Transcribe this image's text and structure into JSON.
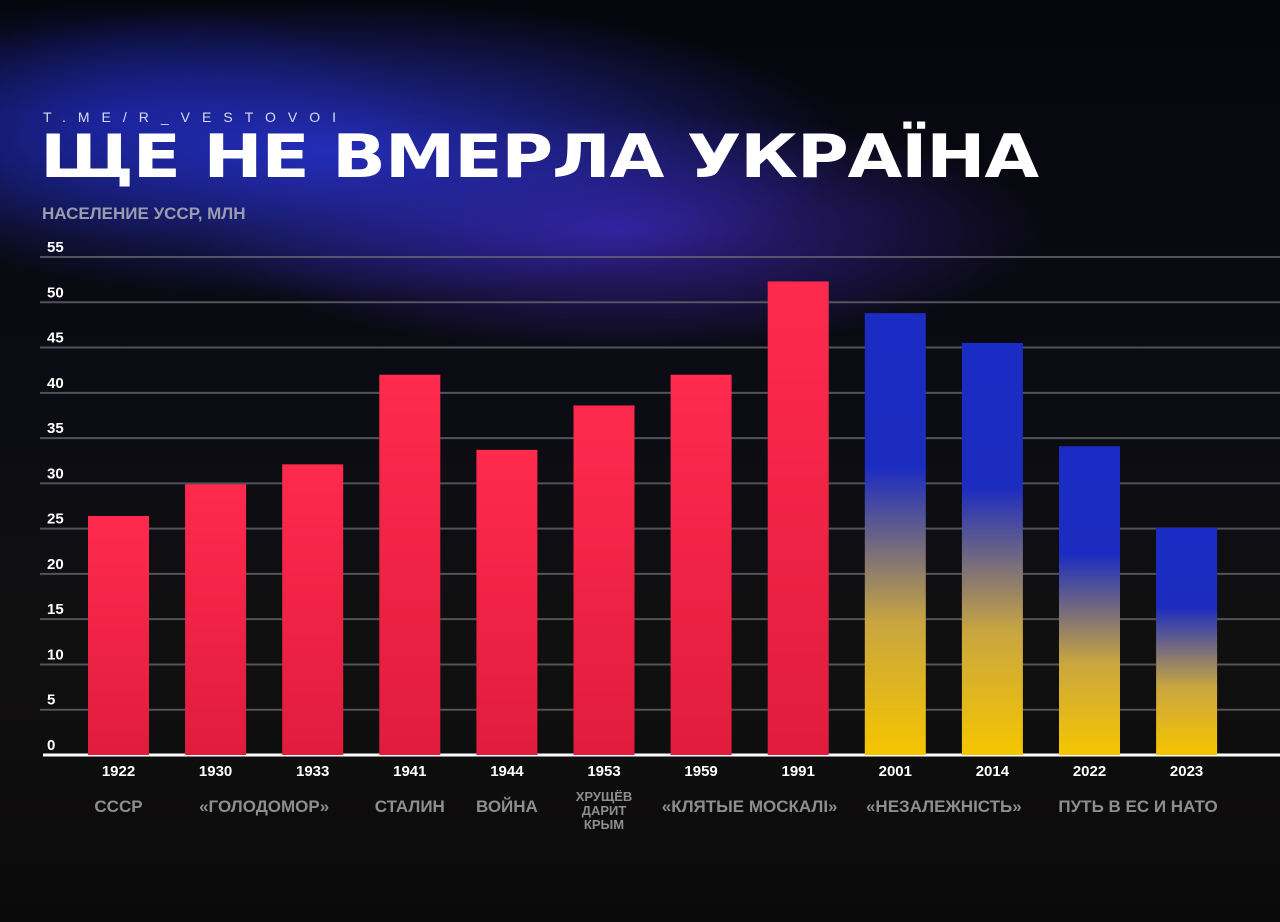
{
  "header": {
    "handle": "T.ME/R_VESTOVOI",
    "title": "ЩЕ НЕ ВМЕРЛА УКРАЇНА"
  },
  "chart_data": {
    "type": "bar",
    "title": "ЩЕ НЕ ВМЕРЛА УКРАЇНА",
    "ylabel": "НАСЕЛЕНИЕ УССР, МЛН",
    "xlabel": "",
    "ylim": [
      0,
      55
    ],
    "yticks": [
      0,
      5,
      10,
      15,
      20,
      25,
      30,
      35,
      40,
      45,
      50,
      55
    ],
    "grid": true,
    "categories": [
      "1922",
      "1930",
      "1933",
      "1941",
      "1944",
      "1953",
      "1959",
      "1991",
      "2001",
      "2014",
      "2022",
      "2023"
    ],
    "values": [
      26.4,
      29.9,
      32.1,
      42.0,
      33.7,
      38.6,
      42.0,
      52.3,
      48.8,
      45.5,
      34.1,
      25.1
    ],
    "bar_styles": [
      "red",
      "red",
      "red",
      "red",
      "red",
      "red",
      "red",
      "red",
      "blue-yellow",
      "blue-yellow",
      "blue-yellow",
      "blue-yellow"
    ],
    "colors": {
      "red": "#e81e40",
      "blue": "#1a2cc4",
      "yellow": "#f6c500"
    },
    "eras": [
      {
        "label": "СССР",
        "from": 0,
        "to": 0
      },
      {
        "label": "«ГОЛОДОМОР»",
        "from": 1,
        "to": 2
      },
      {
        "label": "СТАЛИН",
        "from": 3,
        "to": 3
      },
      {
        "label": "ВОЙНА",
        "from": 4,
        "to": 4
      },
      {
        "label": "ХРУЩЁВ ДАРИТ КРЫМ",
        "from": 5,
        "to": 5
      },
      {
        "label": "«КЛЯТЫЕ МОСКАЛІ»",
        "from": 6,
        "to": 7
      },
      {
        "label": "«НЕЗАЛЕЖНІСТЬ»",
        "from": 8,
        "to": 9
      },
      {
        "label": "ПУТЬ В ЕС И НАТО",
        "from": 10,
        "to": 11
      }
    ]
  }
}
